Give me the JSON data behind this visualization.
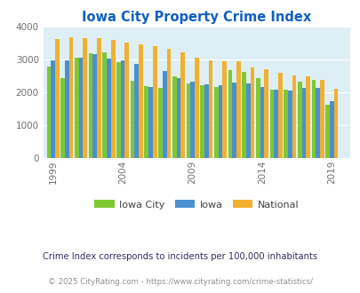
{
  "title": "Iowa City Property Crime Index",
  "title_color": "#1060c0",
  "bg_color": "#ddeef5",
  "fig_bg": "#ffffff",
  "years": [
    1999,
    2000,
    2001,
    2002,
    2003,
    2004,
    2005,
    2006,
    2007,
    2008,
    2009,
    2010,
    2011,
    2012,
    2013,
    2014,
    2015,
    2016,
    2017,
    2018,
    2019
  ],
  "iowa_city": [
    2780,
    2430,
    3050,
    3170,
    3200,
    2920,
    2350,
    2190,
    2130,
    2490,
    2270,
    2200,
    2170,
    2670,
    2620,
    2440,
    2070,
    2090,
    2330,
    2380,
    1625
  ],
  "iowa": [
    2970,
    2960,
    3060,
    3160,
    3010,
    2960,
    2870,
    2170,
    2640,
    2440,
    2310,
    2240,
    2200,
    2280,
    2270,
    2150,
    2080,
    2060,
    2120,
    2130,
    1720
  ],
  "national": [
    3620,
    3660,
    3650,
    3630,
    3600,
    3510,
    3440,
    3390,
    3320,
    3220,
    3050,
    2960,
    2940,
    2930,
    2750,
    2700,
    2580,
    2510,
    2470,
    2380,
    2100
  ],
  "iowa_city_color": "#7ec832",
  "iowa_color": "#4a90d0",
  "national_color": "#f0b030",
  "ylim": [
    0,
    4000
  ],
  "yticks": [
    0,
    1000,
    2000,
    3000,
    4000
  ],
  "xtick_labels": [
    "1999",
    "2004",
    "2009",
    "2014",
    "2019"
  ],
  "xtick_positions": [
    1999,
    2004,
    2009,
    2014,
    2019
  ],
  "subtitle": "Crime Index corresponds to incidents per 100,000 inhabitants",
  "footer": "© 2025 CityRating.com - https://www.cityrating.com/crime-statistics/",
  "legend_labels": [
    "Iowa City",
    "Iowa",
    "National"
  ],
  "bar_width": 0.3
}
